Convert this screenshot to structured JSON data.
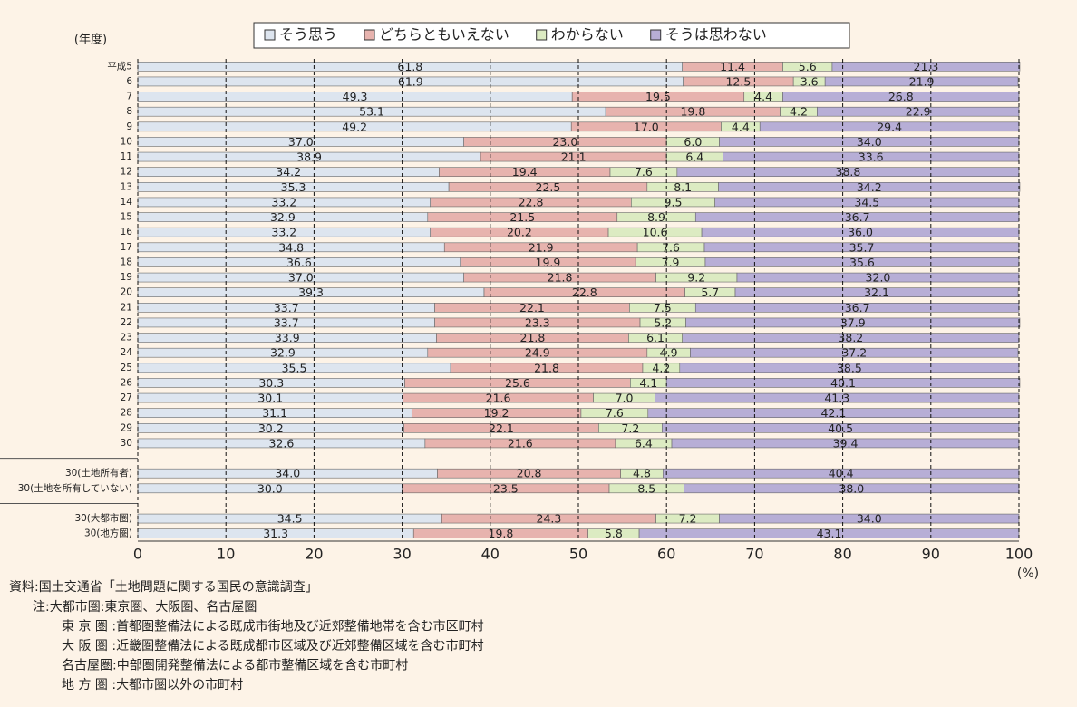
{
  "chart_data": {
    "type": "stacked_bar_horizontal",
    "y_axis_label": "(年度)",
    "x_axis_unit": "(%)",
    "categories": [
      "平成5",
      "6",
      "7",
      "8",
      "9",
      "10",
      "11",
      "12",
      "13",
      "14",
      "15",
      "16",
      "17",
      "18",
      "19",
      "20",
      "21",
      "22",
      "23",
      "24",
      "25",
      "26",
      "27",
      "28",
      "29",
      "30",
      null,
      "30(土地所有者)",
      "30(土地を所有していない)",
      null,
      "30(大都市圏)",
      "30(地方圏)"
    ],
    "series": [
      {
        "name": "そう思う",
        "color": "#dde5ef",
        "values": [
          61.8,
          61.9,
          49.3,
          53.1,
          49.2,
          37.0,
          38.9,
          34.2,
          35.3,
          33.2,
          32.9,
          33.2,
          34.8,
          36.6,
          37.0,
          39.3,
          33.7,
          33.7,
          33.9,
          32.9,
          35.5,
          30.3,
          30.1,
          31.1,
          30.2,
          32.6,
          null,
          34.0,
          30.0,
          null,
          34.5,
          31.3
        ],
        "value_labels": [
          "61.8",
          "61.9",
          "49.3",
          "53.1",
          "49.2",
          "37.0",
          "38.9",
          "34.2",
          "35.3",
          "33.2",
          "32.9",
          "33.2",
          "34.8",
          "36.6",
          "37.0",
          "39.3",
          "33.7",
          "33.7",
          "33.9",
          "32.9",
          "35.5",
          "30.3",
          "30.1",
          "31.1",
          "30.2",
          "32.6",
          null,
          "34.0",
          "30.0",
          null,
          "34.5",
          "31.3"
        ]
      },
      {
        "name": "どちらともいえない",
        "color": "#e7b3ae",
        "values": [
          11.4,
          12.5,
          19.5,
          19.8,
          17.0,
          23.0,
          21.1,
          19.4,
          22.5,
          22.8,
          21.5,
          20.2,
          21.9,
          19.9,
          21.8,
          22.8,
          22.1,
          23.3,
          21.8,
          24.9,
          21.8,
          25.6,
          21.6,
          19.2,
          22.1,
          21.6,
          null,
          20.8,
          23.5,
          null,
          24.3,
          19.8
        ],
        "value_labels": [
          "11.4",
          "12.5",
          "19.5",
          "19.8",
          "17.0",
          "23.0",
          "21.1",
          "19.4",
          "22.5",
          "22.8",
          "21.5",
          "20.2",
          "21.9",
          "19.9",
          "21.8",
          "22.8",
          "22.1",
          "23.3",
          "21.8",
          "24.9",
          "21.8",
          "25.6",
          "21.6",
          "19.2",
          "22.1",
          "21.6",
          null,
          "20.8",
          "23.5",
          null,
          "24.3",
          "19.8"
        ]
      },
      {
        "name": "わからない",
        "color": "#dcebc2",
        "values": [
          5.6,
          3.6,
          4.4,
          4.2,
          4.4,
          6.0,
          6.4,
          7.6,
          8.1,
          9.5,
          8.9,
          10.6,
          7.6,
          7.9,
          9.2,
          5.7,
          7.5,
          5.2,
          6.1,
          4.9,
          4.2,
          4.1,
          7.0,
          7.6,
          7.2,
          6.4,
          null,
          4.8,
          8.5,
          null,
          7.2,
          5.8
        ],
        "value_labels": [
          "5.6",
          "3.6",
          "4.4",
          "4.2",
          "4.4",
          "6.0",
          "6.4",
          "7.6",
          "8.1",
          "9.5",
          "8.9",
          "10.6",
          "7.6",
          "7.9",
          "9.2",
          "5.7",
          "7.5",
          "5.2",
          "6.1",
          "4.9",
          "4.2",
          "4.1",
          "7.0",
          "7.6",
          "7.2",
          "6.4",
          null,
          "4.8",
          "8.5",
          null,
          "7.2",
          "5.8"
        ]
      },
      {
        "name": "そうは思わない",
        "color": "#b7aed6",
        "values": [
          21.3,
          21.9,
          26.8,
          22.9,
          29.4,
          34.0,
          33.6,
          38.8,
          34.2,
          34.5,
          36.7,
          36.0,
          35.7,
          35.6,
          32.0,
          32.1,
          36.7,
          37.9,
          38.2,
          37.2,
          38.5,
          40.1,
          41.3,
          42.1,
          40.5,
          39.4,
          null,
          40.4,
          38.0,
          null,
          34.0,
          43.1
        ],
        "value_labels": [
          "21.3",
          "21.9",
          "26.8",
          "22.9",
          "29.4",
          "34.0",
          "33.6",
          "38.8",
          "34.2",
          "34.5",
          "36.7",
          "36.0",
          "35.7",
          "35.6",
          "32.0",
          "32.1",
          "36.7",
          "37.9",
          "38.2",
          "37.2",
          "38.5",
          "40.1",
          "41.3",
          "42.1",
          "40.5",
          "39.4",
          null,
          "40.4",
          "38.0",
          null,
          "34.0",
          "43.1"
        ]
      }
    ],
    "xlim": [
      0,
      100
    ],
    "xticks": [
      0,
      10,
      20,
      30,
      40,
      50,
      60,
      70,
      80,
      90,
      100
    ],
    "grid": true,
    "source": "資料:国土交通省「土地問題に関する国民の意識調査」",
    "notes": [
      "注:大都市圏:東京圏、大阪圏、名古屋圏",
      "東 京 圏 :首都圏整備法による既成市街地及び近郊整備地帯を含む市区町村",
      "大 阪 圏 :近畿圏整備法による既成都市区域及び近郊整備区域を含む市町村",
      "名古屋圏:中部圏開発整備法による都市整備区域を含む市町村",
      "地 方 圏 :大都市圏以外の市町村"
    ]
  }
}
